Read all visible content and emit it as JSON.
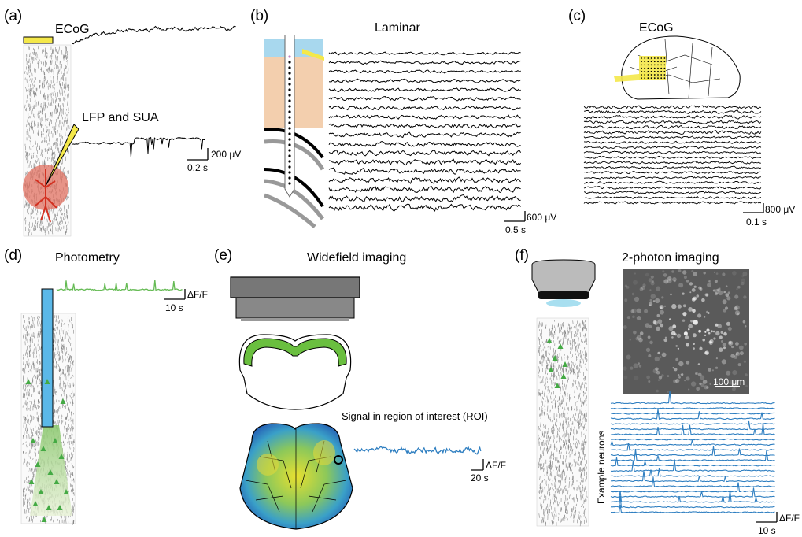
{
  "panels": {
    "a": {
      "label": "(a)",
      "ecog": "ECoG",
      "lfp": "LFP and SUA",
      "scale_v": "200 μV",
      "scale_t": "0.2 s"
    },
    "b": {
      "label": "(b)",
      "title": "Laminar",
      "scale_v": "600 μV",
      "scale_t": "0.5 s"
    },
    "c": {
      "label": "(c)",
      "title": "ECoG",
      "scale_v": "800 μV",
      "scale_t": "0.1 s"
    },
    "d": {
      "label": "(d)",
      "title": "Photometry",
      "scale_v": "ΔF/F",
      "scale_t": "10 s"
    },
    "e": {
      "label": "(e)",
      "title": "Widefield imaging",
      "roi": "Signal in region of interest (ROI)",
      "scale_v": "ΔF/F",
      "scale_t": "20 s"
    },
    "f": {
      "label": "(f)",
      "title": "2-photon imaging",
      "scale_um": "100 μm",
      "neurons": "Example neurons",
      "scale_v": "ΔF/F",
      "scale_t": "10 s"
    }
  },
  "colors": {
    "trace": "#000000",
    "photometry": "#66bb55",
    "calcium": "#2f7fc1",
    "probe": "#f4e84a",
    "fiber": "#5bb8e8",
    "tissue": "#f3cfae",
    "csf": "#a8d8ee",
    "neuron_green": "#44aa44",
    "red_cell": "#e07060",
    "green_cortex": "#6abf3f"
  }
}
